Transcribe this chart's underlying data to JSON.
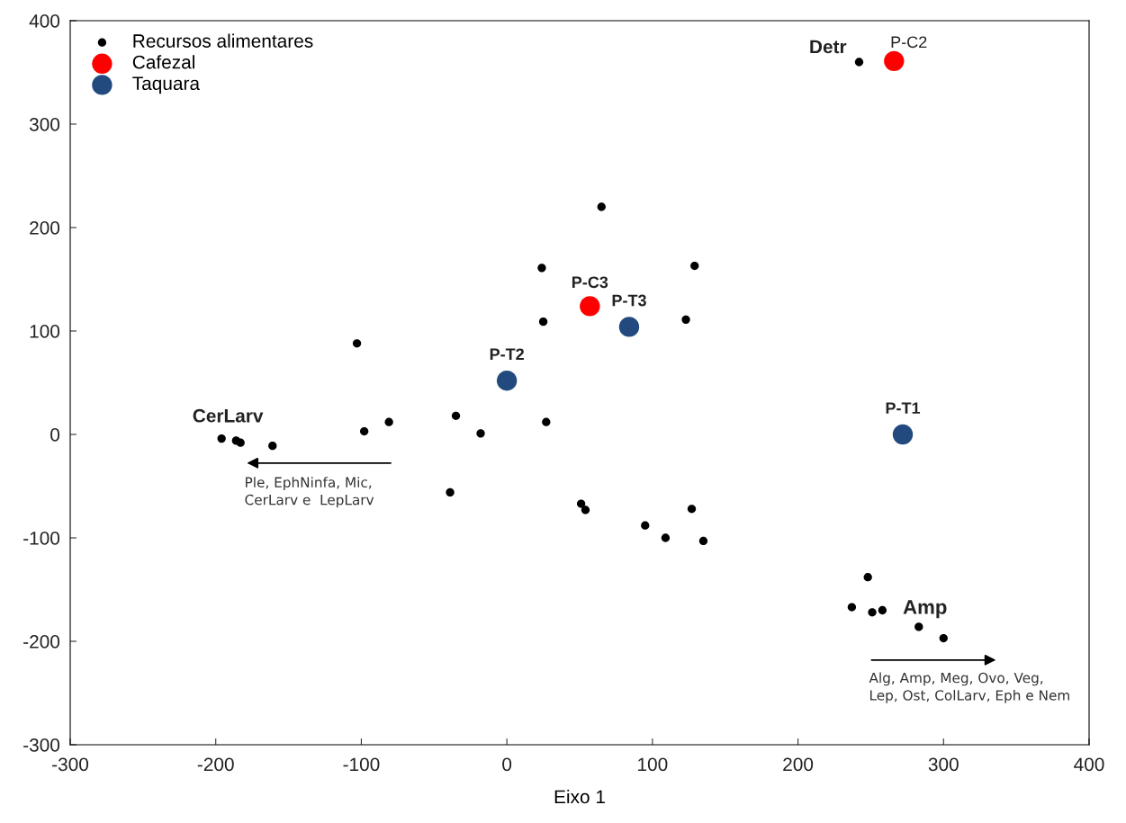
{
  "chart_data": {
    "type": "scatter",
    "xlabel": "Eixo 1",
    "xlim": [
      -300,
      400
    ],
    "xticks": [
      -300,
      -200,
      -100,
      0,
      100,
      200,
      300,
      400
    ],
    "ylim": [
      -300,
      400
    ],
    "yticks": [
      -300,
      -200,
      -100,
      0,
      100,
      200,
      300,
      400
    ],
    "grid": false,
    "legend": "top left",
    "marker": "circle",
    "series": [
      {
        "name": "Recursos alimentares",
        "color": "#000000",
        "x": [
          242,
          65,
          24,
          129,
          25,
          123,
          -103,
          -98,
          -81,
          -35,
          -18,
          27,
          -196,
          -186,
          -183,
          -161,
          -39,
          51,
          54,
          95,
          109,
          127,
          135,
          248,
          237,
          251,
          258,
          283,
          300
        ],
        "values": [
          360,
          220,
          161,
          163,
          109,
          111,
          88,
          3,
          12,
          18,
          1,
          12,
          -4,
          -6,
          -8,
          -11,
          -56,
          -67,
          -73,
          -88,
          -100,
          -72,
          -103,
          -138,
          -167,
          -172,
          -170,
          -186,
          -197
        ]
      },
      {
        "name": "Cafezal",
        "color": "#ff0000",
        "x": [
          266,
          57
        ],
        "values": [
          361,
          124
        ]
      },
      {
        "name": "Taquara",
        "color": "#224a7e",
        "x": [
          272,
          0,
          84
        ],
        "values": [
          0,
          52,
          104
        ]
      }
    ],
    "annotations": [
      {
        "text": "Detr",
        "x": 242,
        "y": 360
      },
      {
        "text": "P-C2",
        "x": 266,
        "y": 361
      },
      {
        "text": "P-C3",
        "x": 57,
        "y": 124
      },
      {
        "text": "P-T3",
        "x": 84,
        "y": 104
      },
      {
        "text": "P-T2",
        "x": 0,
        "y": 52
      },
      {
        "text": "P-T1",
        "x": 272,
        "y": 0
      },
      {
        "text": "CerLarv",
        "x": -196,
        "y": -4
      },
      {
        "text": "Amp",
        "x": 283,
        "y": -186
      },
      "Ple, EphNinfa, Mic,\nCerLarv e  LepLarv",
      "Alg, Amp, Meg, Ovo, Veg,\nLep, Ost, ColLarv, Eph e Nem"
    ]
  }
}
